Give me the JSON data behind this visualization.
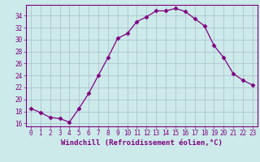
{
  "x": [
    0,
    1,
    2,
    3,
    4,
    5,
    6,
    7,
    8,
    9,
    10,
    11,
    12,
    13,
    14,
    15,
    16,
    17,
    18,
    19,
    20,
    21,
    22,
    23
  ],
  "y": [
    18.5,
    17.8,
    17.0,
    16.8,
    16.2,
    18.5,
    21.0,
    24.0,
    27.0,
    30.2,
    31.0,
    33.0,
    33.8,
    34.8,
    34.8,
    35.2,
    34.7,
    33.5,
    32.3,
    29.0,
    27.0,
    24.3,
    23.2,
    22.4
  ],
  "line_color": "#800080",
  "marker": "D",
  "marker_size": 2.5,
  "bg_color": "#cceaea",
  "grid_color": "#aabbcc",
  "xlabel": "Windchill (Refroidissement éolien,°C)",
  "xlim": [
    -0.5,
    23.5
  ],
  "ylim": [
    15.5,
    35.8
  ],
  "yticks": [
    16,
    18,
    20,
    22,
    24,
    26,
    28,
    30,
    32,
    34
  ],
  "xticks": [
    0,
    1,
    2,
    3,
    4,
    5,
    6,
    7,
    8,
    9,
    10,
    11,
    12,
    13,
    14,
    15,
    16,
    17,
    18,
    19,
    20,
    21,
    22,
    23
  ],
  "tick_label_fontsize": 5.5,
  "xlabel_fontsize": 6.5
}
